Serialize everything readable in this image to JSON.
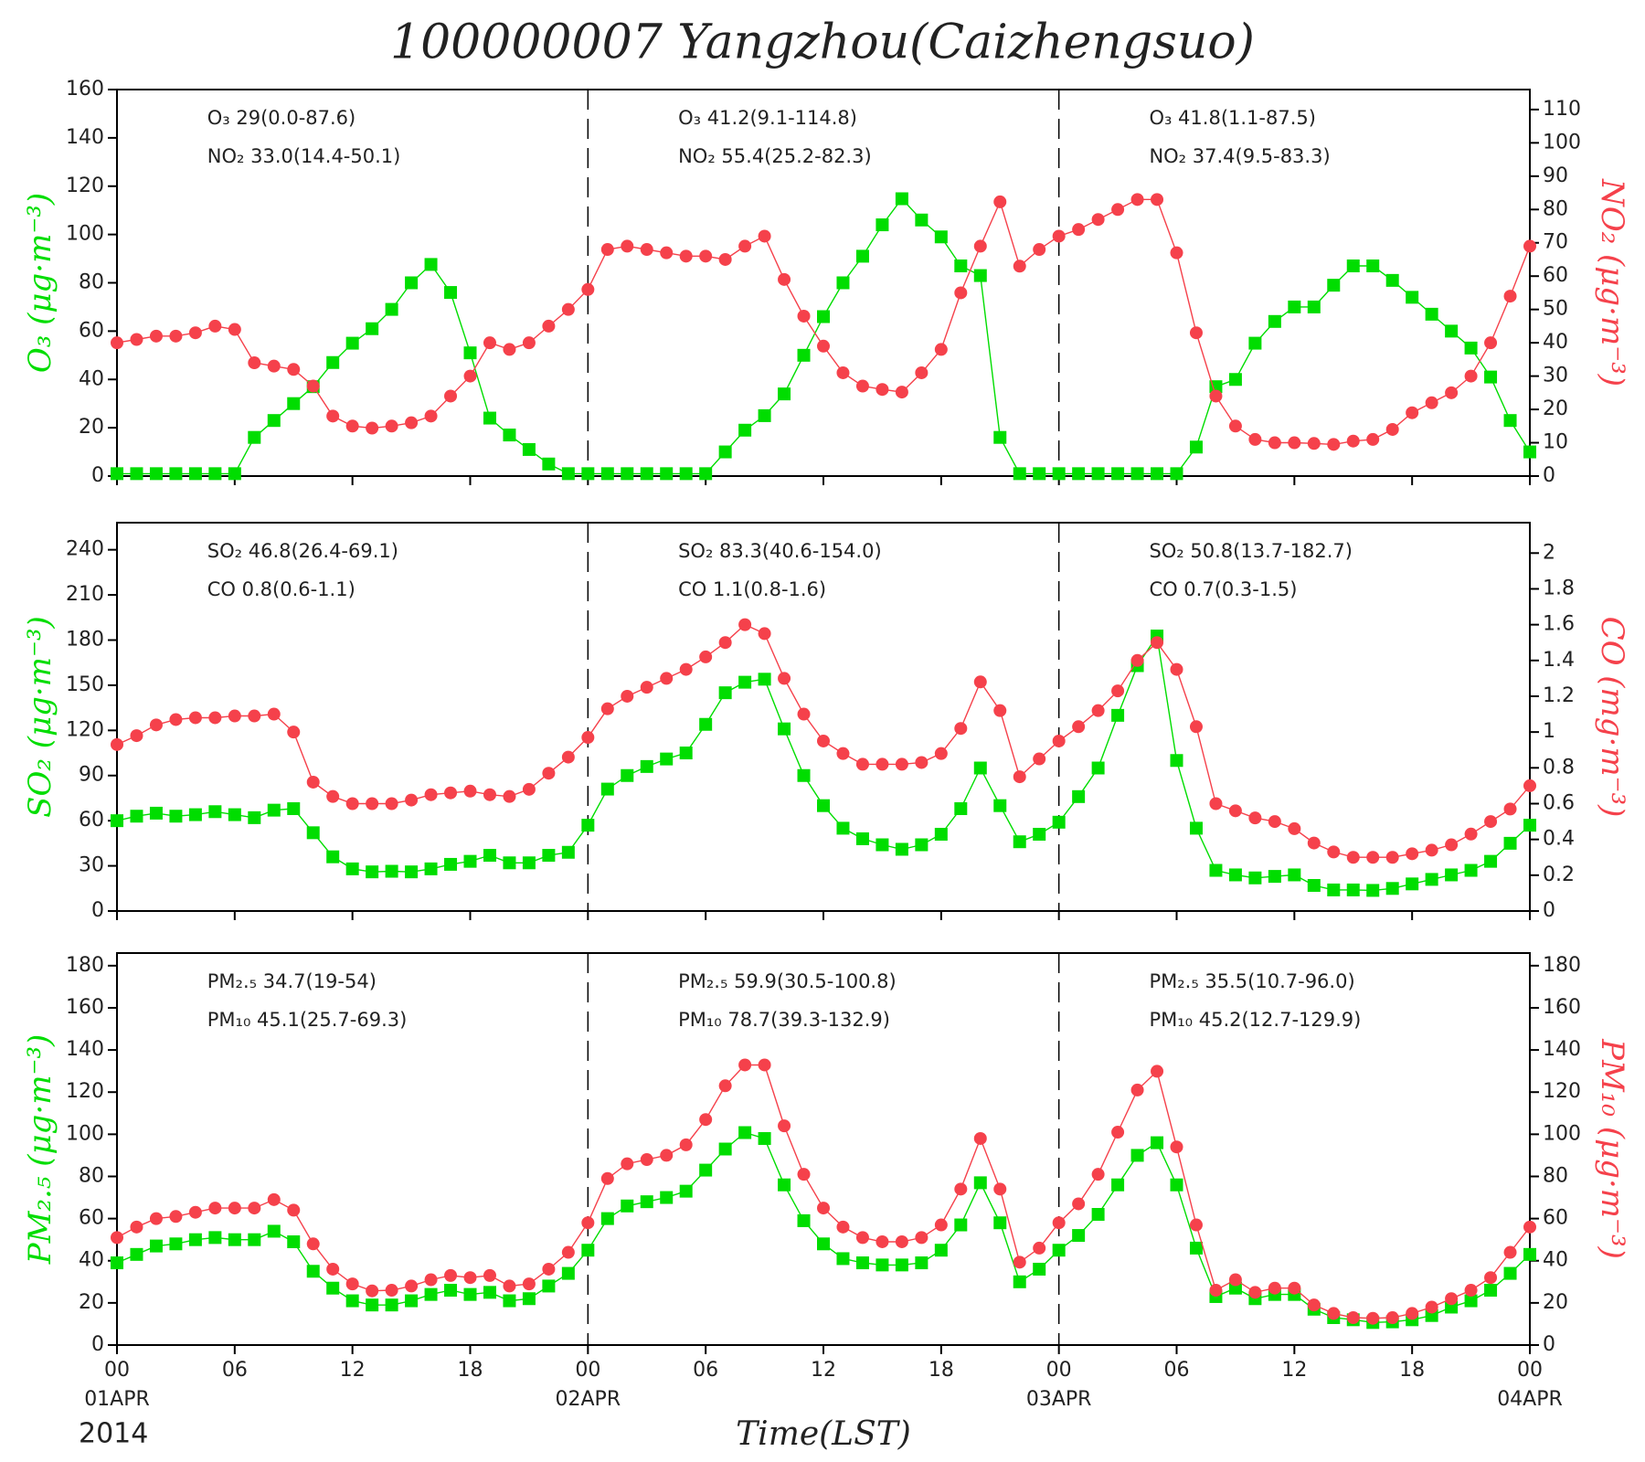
{
  "title": "100000007 Yangzhou(Caizhengsuo)",
  "chart_data": [
    {
      "type": "line",
      "ylabel": "O₃  (μg·m⁻³)",
      "y2label": "NO₂  (μg·m⁻³)",
      "xlim": [
        0,
        72
      ],
      "ylim": [
        0,
        160
      ],
      "yticks": [
        0,
        20,
        40,
        60,
        80,
        100,
        120,
        140,
        160
      ],
      "y2lim": [
        0,
        116
      ],
      "y2ticks": [
        0,
        10,
        20,
        30,
        40,
        50,
        60,
        70,
        80,
        90,
        100,
        110
      ],
      "annotations": [
        [
          "O₃ 29(0.0-87.6)",
          "NO₂ 33.0(14.4-50.1)"
        ],
        [
          "O₃ 41.2(9.1-114.8)",
          "NO₂ 55.4(25.2-82.3)"
        ],
        [
          "O₃ 41.8(1.1-87.5)",
          "NO₂ 37.4(9.5-83.3)"
        ]
      ],
      "x": [
        0,
        1,
        2,
        3,
        4,
        5,
        6,
        7,
        8,
        9,
        10,
        11,
        12,
        13,
        14,
        15,
        16,
        17,
        18,
        19,
        20,
        21,
        22,
        23,
        24,
        25,
        26,
        27,
        28,
        29,
        30,
        31,
        32,
        33,
        34,
        35,
        36,
        37,
        38,
        39,
        40,
        41,
        42,
        43,
        44,
        45,
        46,
        47,
        48,
        49,
        50,
        51,
        52,
        53,
        54,
        55,
        56,
        57,
        58,
        59,
        60,
        61,
        62,
        63,
        64,
        65,
        66,
        67,
        68,
        69,
        70,
        71,
        72
      ],
      "series": [
        {
          "color": "#00dd00",
          "marker": "square",
          "values": [
            1,
            1,
            1,
            1,
            1,
            1,
            1,
            16,
            23,
            30,
            37,
            47,
            55,
            61,
            69,
            80,
            87.6,
            76,
            51,
            24,
            17,
            11,
            5,
            1,
            1,
            1,
            1,
            1,
            1,
            1,
            1,
            10,
            19,
            25,
            34,
            50,
            66,
            80,
            91,
            104,
            114.8,
            106,
            99,
            87,
            83,
            16,
            1,
            1,
            1,
            1,
            1,
            1,
            1,
            1,
            1,
            12,
            37,
            40,
            55,
            64,
            70,
            70,
            79,
            87,
            87,
            81,
            74,
            67,
            60,
            53,
            41,
            23,
            10
          ]
        },
        {
          "color": "#f5414b",
          "marker": "circle",
          "axis": "y2",
          "values": [
            40,
            41,
            42,
            42,
            43,
            45,
            44,
            34,
            33,
            32,
            27,
            18,
            15,
            14.4,
            15,
            16,
            18,
            24,
            30,
            40,
            38,
            40,
            45,
            50,
            56,
            68,
            69,
            68,
            67,
            66,
            66,
            65,
            69,
            72,
            59,
            48,
            39,
            31,
            27,
            26,
            25.2,
            31,
            38,
            55,
            69,
            82.3,
            63,
            68,
            72,
            74,
            77,
            80,
            83,
            83,
            67,
            43,
            24,
            15,
            11,
            10,
            10,
            9.8,
            9.5,
            10.5,
            11,
            14,
            19,
            22,
            25,
            30,
            40,
            54,
            69
          ]
        }
      ]
    },
    {
      "type": "line",
      "ylabel": "SO₂  (μg·m⁻³)",
      "y2label": "CO  (mg·m⁻³)",
      "xlim": [
        0,
        72
      ],
      "ylim": [
        0,
        258
      ],
      "yticks": [
        0,
        30,
        60,
        90,
        120,
        150,
        180,
        210,
        240
      ],
      "y2lim": [
        0,
        2.17
      ],
      "y2ticks": [
        0,
        0.2,
        0.4,
        0.6,
        0.8,
        1,
        1.2,
        1.4,
        1.6,
        1.8,
        2
      ],
      "annotations": [
        [
          "SO₂ 46.8(26.4-69.1)",
          "CO 0.8(0.6-1.1)"
        ],
        [
          "SO₂ 83.3(40.6-154.0)",
          "CO 1.1(0.8-1.6)"
        ],
        [
          "SO₂ 50.8(13.7-182.7)",
          "CO 0.7(0.3-1.5)"
        ]
      ],
      "x": [
        0,
        1,
        2,
        3,
        4,
        5,
        6,
        7,
        8,
        9,
        10,
        11,
        12,
        13,
        14,
        15,
        16,
        17,
        18,
        19,
        20,
        21,
        22,
        23,
        24,
        25,
        26,
        27,
        28,
        29,
        30,
        31,
        32,
        33,
        34,
        35,
        36,
        37,
        38,
        39,
        40,
        41,
        42,
        43,
        44,
        45,
        46,
        47,
        48,
        49,
        50,
        51,
        52,
        53,
        54,
        55,
        56,
        57,
        58,
        59,
        60,
        61,
        62,
        63,
        64,
        65,
        66,
        67,
        68,
        69,
        70,
        71,
        72
      ],
      "series": [
        {
          "color": "#00dd00",
          "marker": "square",
          "values": [
            60,
            63,
            65,
            63,
            64,
            66,
            64,
            62,
            67,
            68,
            52,
            36,
            28,
            26,
            26.4,
            26,
            28,
            31,
            33,
            37,
            32,
            32,
            37,
            39,
            57,
            81,
            90,
            96,
            101,
            105,
            124,
            145,
            152,
            154,
            121,
            90,
            70,
            55,
            48,
            44,
            41,
            44,
            51,
            68,
            95,
            70,
            46,
            51,
            59,
            76,
            95,
            130,
            163,
            182.7,
            100,
            55,
            27,
            24,
            22,
            23,
            24,
            17,
            14,
            14,
            13.7,
            15,
            18,
            21,
            24,
            27,
            33,
            45,
            57
          ]
        },
        {
          "color": "#f5414b",
          "marker": "circle",
          "axis": "y2",
          "values": [
            0.93,
            0.98,
            1.04,
            1.07,
            1.08,
            1.08,
            1.09,
            1.09,
            1.1,
            1.0,
            0.72,
            0.64,
            0.6,
            0.6,
            0.6,
            0.62,
            0.65,
            0.66,
            0.67,
            0.65,
            0.64,
            0.68,
            0.77,
            0.86,
            0.97,
            1.13,
            1.2,
            1.25,
            1.3,
            1.35,
            1.42,
            1.5,
            1.6,
            1.55,
            1.3,
            1.1,
            0.95,
            0.88,
            0.82,
            0.82,
            0.82,
            0.83,
            0.88,
            1.02,
            1.28,
            1.12,
            0.75,
            0.85,
            0.95,
            1.03,
            1.12,
            1.23,
            1.4,
            1.5,
            1.35,
            1.03,
            0.6,
            0.56,
            0.52,
            0.5,
            0.46,
            0.38,
            0.33,
            0.3,
            0.3,
            0.3,
            0.32,
            0.34,
            0.37,
            0.43,
            0.5,
            0.57,
            0.7
          ]
        }
      ]
    },
    {
      "type": "line",
      "ylabel": "PM₂.₅  (μg·m⁻³)",
      "y2label": "PM₁₀  (μg·m⁻³)",
      "xlim": [
        0,
        72
      ],
      "ylim": [
        0,
        186
      ],
      "yticks": [
        0,
        20,
        40,
        60,
        80,
        100,
        120,
        140,
        160,
        180
      ],
      "y2lim": [
        0,
        186
      ],
      "y2ticks": [
        0,
        20,
        40,
        60,
        80,
        100,
        120,
        140,
        160,
        180
      ],
      "annotations": [
        [
          "PM₂.₅ 34.7(19-54)",
          "PM₁₀ 45.1(25.7-69.3)"
        ],
        [
          "PM₂.₅ 59.9(30.5-100.8)",
          "PM₁₀ 78.7(39.3-132.9)"
        ],
        [
          "PM₂.₅ 35.5(10.7-96.0)",
          "PM₁₀ 45.2(12.7-129.9)"
        ]
      ],
      "xticks": [
        {
          "value": 0,
          "label": "00"
        },
        {
          "value": 6,
          "label": "06"
        },
        {
          "value": 12,
          "label": "12"
        },
        {
          "value": 18,
          "label": "18"
        },
        {
          "value": 24,
          "label": "00"
        },
        {
          "value": 30,
          "label": "06"
        },
        {
          "value": 36,
          "label": "12"
        },
        {
          "value": 42,
          "label": "18"
        },
        {
          "value": 48,
          "label": "00"
        },
        {
          "value": 54,
          "label": "06"
        },
        {
          "value": 60,
          "label": "12"
        },
        {
          "value": 66,
          "label": "18"
        },
        {
          "value": 72,
          "label": "00"
        }
      ],
      "date_labels": [
        {
          "value": 0,
          "label": "01APR"
        },
        {
          "value": 24,
          "label": "02APR"
        },
        {
          "value": 48,
          "label": "03APR"
        },
        {
          "value": 72,
          "label": "04APR"
        }
      ],
      "year_label": "2014",
      "xlabel": "Time(LST)",
      "x": [
        0,
        1,
        2,
        3,
        4,
        5,
        6,
        7,
        8,
        9,
        10,
        11,
        12,
        13,
        14,
        15,
        16,
        17,
        18,
        19,
        20,
        21,
        22,
        23,
        24,
        25,
        26,
        27,
        28,
        29,
        30,
        31,
        32,
        33,
        34,
        35,
        36,
        37,
        38,
        39,
        40,
        41,
        42,
        43,
        44,
        45,
        46,
        47,
        48,
        49,
        50,
        51,
        52,
        53,
        54,
        55,
        56,
        57,
        58,
        59,
        60,
        61,
        62,
        63,
        64,
        65,
        66,
        67,
        68,
        69,
        70,
        71,
        72
      ],
      "series": [
        {
          "color": "#00dd00",
          "marker": "square",
          "values": [
            39,
            43,
            47,
            48,
            50,
            51,
            50,
            50,
            54,
            49,
            35,
            27,
            21,
            19,
            19,
            21,
            24,
            26,
            24,
            25,
            21,
            22,
            28,
            34,
            45,
            60,
            66,
            68,
            70,
            73,
            83,
            93,
            100.8,
            98,
            76,
            59,
            48,
            41,
            39,
            38,
            38,
            39,
            45,
            57,
            77,
            58,
            30,
            36,
            45,
            52,
            62,
            76,
            90,
            96,
            76,
            46,
            23,
            27,
            22,
            24,
            24,
            17,
            13,
            12,
            10.7,
            11,
            12,
            14,
            18,
            21,
            26,
            34,
            43
          ]
        },
        {
          "color": "#f5414b",
          "marker": "circle",
          "axis": "y2",
          "values": [
            51,
            56,
            60,
            61,
            63,
            65,
            65,
            65,
            69,
            64,
            48,
            36,
            29,
            25.7,
            26,
            28,
            31,
            33,
            32,
            33,
            28,
            29,
            36,
            44,
            58,
            79,
            86,
            88,
            90,
            95,
            107,
            123,
            132.9,
            132.9,
            104,
            81,
            65,
            56,
            51,
            49,
            49,
            51,
            57,
            74,
            98,
            74,
            39.3,
            46,
            58,
            67,
            81,
            101,
            121,
            129.9,
            94,
            57,
            26,
            31,
            25,
            27,
            27,
            19,
            15,
            13,
            12.7,
            13,
            15,
            18,
            22,
            26,
            32,
            44,
            56
          ]
        }
      ]
    }
  ]
}
